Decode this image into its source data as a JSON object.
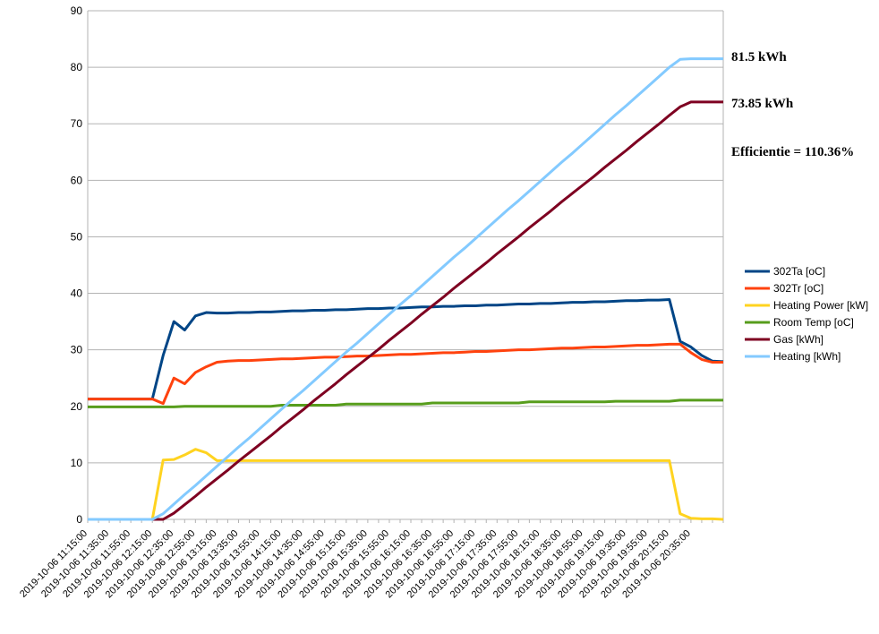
{
  "chart_data": {
    "type": "line",
    "categories": [
      "2019-10-06 11:15:00",
      null,
      "2019-10-06 11:35:00",
      null,
      "2019-10-06 11:55:00",
      null,
      "2019-10-06 12:15:00",
      null,
      "2019-10-06 12:35:00",
      null,
      "2019-10-06 12:55:00",
      null,
      "2019-10-06 13:15:00",
      null,
      "2019-10-06 13:35:00",
      null,
      "2019-10-06 13:55:00",
      null,
      "2019-10-06 14:15:00",
      null,
      "2019-10-06 14:35:00",
      null,
      "2019-10-06 14:55:00",
      null,
      "2019-10-06 15:15:00",
      null,
      "2019-10-06 15:35:00",
      null,
      "2019-10-06 15:55:00",
      null,
      "2019-10-06 16:15:00",
      null,
      "2019-10-06 16:35:00",
      null,
      "2019-10-06 16:55:00",
      null,
      "2019-10-06 17:15:00",
      null,
      "2019-10-06 17:35:00",
      null,
      "2019-10-06 17:55:00",
      null,
      "2019-10-06 18:15:00",
      null,
      "2019-10-06 18:35:00",
      null,
      "2019-10-06 18:55:00",
      null,
      "2019-10-06 19:15:00",
      null,
      "2019-10-06 19:35:00",
      null,
      "2019-10-06 19:55:00",
      null,
      "2019-10-06 20:15:00",
      null,
      "2019-10-06 20:35:00",
      null,
      null,
      null
    ],
    "series": [
      {
        "name": "302Ta [oC]",
        "color": "#004586",
        "values": [
          21.3,
          21.3,
          21.3,
          21.3,
          21.3,
          21.3,
          21.3,
          29.0,
          35.0,
          33.5,
          36.0,
          36.6,
          36.5,
          36.5,
          36.6,
          36.6,
          36.7,
          36.7,
          36.8,
          36.9,
          36.9,
          37.0,
          37.0,
          37.1,
          37.1,
          37.2,
          37.3,
          37.3,
          37.4,
          37.4,
          37.5,
          37.6,
          37.6,
          37.7,
          37.7,
          37.8,
          37.8,
          37.9,
          37.9,
          38.0,
          38.1,
          38.1,
          38.2,
          38.2,
          38.3,
          38.4,
          38.4,
          38.5,
          38.5,
          38.6,
          38.7,
          38.7,
          38.8,
          38.8,
          38.9,
          31.5,
          30.5,
          29.0,
          28.0,
          27.9
        ]
      },
      {
        "name": "302Tr [oC]",
        "color": "#ff420e",
        "values": [
          21.3,
          21.3,
          21.3,
          21.3,
          21.3,
          21.3,
          21.3,
          20.5,
          25.0,
          24.0,
          26.0,
          27.0,
          27.8,
          28.0,
          28.1,
          28.1,
          28.2,
          28.3,
          28.4,
          28.4,
          28.5,
          28.6,
          28.7,
          28.7,
          28.8,
          28.9,
          28.9,
          29.0,
          29.1,
          29.2,
          29.2,
          29.3,
          29.4,
          29.5,
          29.5,
          29.6,
          29.7,
          29.7,
          29.8,
          29.9,
          30.0,
          30.0,
          30.1,
          30.2,
          30.3,
          30.3,
          30.4,
          30.5,
          30.5,
          30.6,
          30.7,
          30.8,
          30.8,
          30.9,
          31.0,
          31.0,
          29.5,
          28.3,
          27.8,
          27.8
        ]
      },
      {
        "name": "Heating Power [kW]",
        "color": "#ffd320",
        "values": [
          0,
          0,
          0,
          0,
          0,
          0,
          0,
          10.5,
          10.6,
          11.4,
          12.4,
          11.8,
          10.4,
          10.4,
          10.4,
          10.4,
          10.4,
          10.4,
          10.4,
          10.4,
          10.4,
          10.4,
          10.4,
          10.4,
          10.4,
          10.4,
          10.4,
          10.4,
          10.4,
          10.4,
          10.4,
          10.4,
          10.4,
          10.4,
          10.4,
          10.4,
          10.4,
          10.4,
          10.4,
          10.4,
          10.4,
          10.4,
          10.4,
          10.4,
          10.4,
          10.4,
          10.4,
          10.4,
          10.4,
          10.4,
          10.4,
          10.4,
          10.4,
          10.4,
          10.4,
          1.0,
          0.2,
          0.1,
          0.1,
          0
        ]
      },
      {
        "name": "Room Temp [oC]",
        "color": "#579d1c",
        "values": [
          19.9,
          19.9,
          19.9,
          19.9,
          19.9,
          19.9,
          19.9,
          19.9,
          19.9,
          20.0,
          20.0,
          20.0,
          20.0,
          20.0,
          20.0,
          20.0,
          20.0,
          20.0,
          20.2,
          20.2,
          20.2,
          20.2,
          20.2,
          20.2,
          20.4,
          20.4,
          20.4,
          20.4,
          20.4,
          20.4,
          20.4,
          20.4,
          20.6,
          20.6,
          20.6,
          20.6,
          20.6,
          20.6,
          20.6,
          20.6,
          20.6,
          20.8,
          20.8,
          20.8,
          20.8,
          20.8,
          20.8,
          20.8,
          20.8,
          20.9,
          20.9,
          20.9,
          20.9,
          20.9,
          20.9,
          21.1,
          21.1,
          21.1,
          21.1,
          21.1
        ]
      },
      {
        "name": "Gas [kWh]",
        "color": "#7e0021",
        "values": [
          0,
          0,
          0,
          0,
          0,
          0,
          0,
          0,
          1.1,
          2.6,
          4.1,
          5.7,
          7.2,
          8.7,
          10.3,
          11.8,
          13.3,
          14.8,
          16.4,
          17.9,
          19.4,
          21.0,
          22.5,
          24.0,
          25.6,
          27.1,
          28.6,
          30.1,
          31.7,
          33.2,
          34.7,
          36.3,
          37.8,
          39.3,
          40.9,
          42.4,
          43.9,
          45.4,
          47.0,
          48.5,
          50.0,
          51.6,
          53.1,
          54.6,
          56.2,
          57.7,
          59.2,
          60.7,
          62.3,
          63.8,
          65.3,
          66.9,
          68.4,
          69.9,
          71.5,
          73.0,
          73.85,
          73.85,
          73.85,
          73.85
        ]
      },
      {
        "name": "Heating [kWh]",
        "color": "#83caff",
        "values": [
          0,
          0,
          0,
          0,
          0,
          0,
          0,
          1.0,
          2.7,
          4.4,
          6.0,
          7.7,
          9.4,
          11.1,
          12.8,
          14.4,
          16.1,
          17.8,
          19.5,
          21.2,
          22.8,
          24.5,
          26.2,
          27.9,
          29.6,
          31.2,
          32.9,
          34.6,
          36.3,
          38.0,
          39.6,
          41.3,
          43.0,
          44.7,
          46.4,
          48.0,
          49.7,
          51.4,
          53.1,
          54.8,
          56.4,
          58.1,
          59.8,
          61.5,
          63.2,
          64.8,
          66.5,
          68.2,
          69.9,
          71.6,
          73.2,
          74.9,
          76.6,
          78.3,
          80.0,
          81.4,
          81.5,
          81.5,
          81.5,
          81.5
        ]
      }
    ],
    "annotations": [
      "81.5 kWh",
      "73.85 kWh",
      "Efficientie = 110.36%"
    ],
    "ylim": [
      0,
      90
    ],
    "yticks": [
      0,
      10,
      20,
      30,
      40,
      50,
      60,
      70,
      80,
      90
    ],
    "grid": true,
    "legend": "right"
  }
}
